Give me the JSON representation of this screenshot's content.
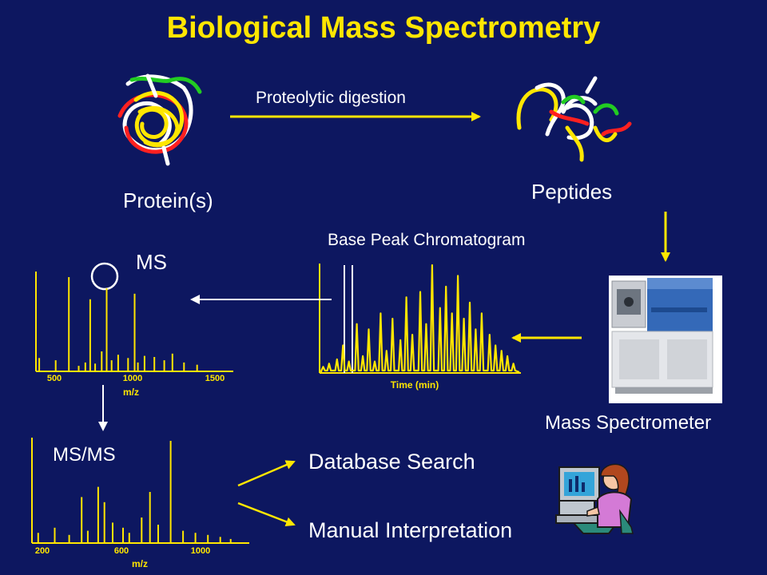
{
  "title": "Biological Mass Spectrometry",
  "labels": {
    "protein": "Protein(s)",
    "digestion": "Proteolytic digestion",
    "peptides": "Peptides",
    "bpc": "Base Peak Chromatogram",
    "ms": "MS",
    "msms": "MS/MS",
    "mass_spectrometer": "Mass Spectrometer",
    "database_search": "Database Search",
    "manual_interpretation": "Manual Interpretation"
  },
  "colors": {
    "background": "#0d1760",
    "accent": "#ffe600",
    "text": "#ffffff",
    "arrow_white": "#ffffff"
  },
  "icons": [
    "protein-tangle-icon",
    "peptides-icon",
    "mass-spectrometer-icon",
    "analyst-at-computer-icon"
  ],
  "chart_data": [
    {
      "type": "bar",
      "name": "ms",
      "xlabel": "m/z",
      "xlim": [
        400,
        1600
      ],
      "xticks": [
        500,
        1000,
        1500
      ],
      "x": [
        420,
        520,
        600,
        660,
        700,
        730,
        760,
        800,
        830,
        860,
        900,
        960,
        1000,
        1020,
        1060,
        1120,
        1180,
        1230,
        1300,
        1380
      ],
      "values": [
        12,
        10,
        85,
        5,
        8,
        65,
        7,
        18,
        75,
        10,
        15,
        12,
        70,
        8,
        14,
        13,
        10,
        16,
        8,
        6
      ]
    },
    {
      "type": "line",
      "name": "base-peak-chromatogram",
      "xlabel": "Time (min)",
      "x": [
        1,
        4,
        8,
        11,
        14,
        18,
        21,
        24,
        27,
        30,
        33,
        36,
        40,
        43,
        46,
        50,
        53,
        56,
        60,
        63,
        66,
        69,
        72,
        75,
        78,
        81,
        85,
        88,
        91,
        94,
        97
      ],
      "values": [
        5,
        8,
        12,
        25,
        10,
        45,
        15,
        40,
        10,
        55,
        20,
        50,
        30,
        70,
        35,
        75,
        45,
        100,
        60,
        80,
        55,
        90,
        50,
        65,
        40,
        55,
        35,
        25,
        20,
        15,
        8
      ]
    },
    {
      "type": "bar",
      "name": "msms",
      "xlabel": "m/z",
      "xlim": [
        150,
        1200
      ],
      "xticks": [
        200,
        600,
        1000
      ],
      "x": [
        180,
        260,
        330,
        390,
        420,
        470,
        500,
        540,
        590,
        620,
        680,
        720,
        760,
        820,
        880,
        940,
        1000,
        1060,
        1110
      ],
      "values": [
        10,
        15,
        8,
        45,
        12,
        55,
        40,
        20,
        15,
        10,
        25,
        50,
        18,
        100,
        12,
        10,
        8,
        6,
        4
      ]
    }
  ]
}
